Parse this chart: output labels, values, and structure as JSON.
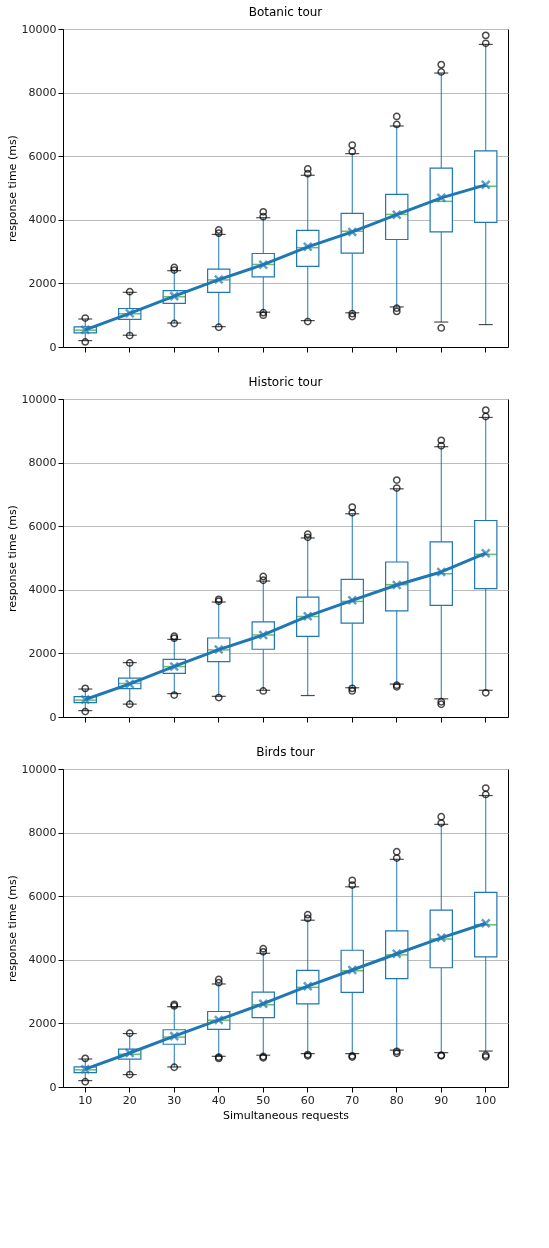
{
  "chart_data": [
    {
      "type": "box",
      "title": "Botanic tour",
      "ylabel": "response time (ms)",
      "categories": [
        "10",
        "20",
        "30",
        "40",
        "50",
        "60",
        "70",
        "80",
        "90",
        "100"
      ],
      "ylim": [
        0,
        10000
      ],
      "yticks": [
        0,
        2000,
        4000,
        6000,
        8000,
        10000
      ],
      "grid": "y",
      "legend": false,
      "tick_labels": "y",
      "series": [
        {
          "type": "box",
          "color": "#1f77b4",
          "boxes": [
            {
              "low": 200,
              "q1": 445,
              "median": 530,
              "q3": 630,
              "high": 880,
              "outliers": [
                160,
                910
              ]
            },
            {
              "low": 370,
              "q1": 870,
              "median": 1045,
              "q3": 1210,
              "high": 1720,
              "outliers": [
                360,
                1740
              ]
            },
            {
              "low": 755,
              "q1": 1375,
              "median": 1580,
              "q3": 1770,
              "high": 2400,
              "outliers": [
                740,
                2420,
                2500
              ]
            },
            {
              "low": 640,
              "q1": 1720,
              "median": 2110,
              "q3": 2450,
              "high": 3540,
              "outliers": [
                620,
                3580,
                3680
              ]
            },
            {
              "low": 1095,
              "q1": 2205,
              "median": 2595,
              "q3": 2940,
              "high": 4065,
              "outliers": [
                1000,
                1080,
                4100,
                4250
              ]
            },
            {
              "low": 830,
              "q1": 2535,
              "median": 3125,
              "q3": 3670,
              "high": 5400,
              "outliers": [
                800,
                5450,
                5600
              ]
            },
            {
              "low": 1075,
              "q1": 2950,
              "median": 3640,
              "q3": 4200,
              "high": 6080,
              "outliers": [
                960,
                1050,
                6150,
                6350
              ]
            },
            {
              "low": 1260,
              "q1": 3380,
              "median": 4170,
              "q3": 4800,
              "high": 6950,
              "outliers": [
                1120,
                1220,
                7000,
                7250
              ]
            },
            {
              "low": 785,
              "q1": 3620,
              "median": 4580,
              "q3": 5625,
              "high": 8615,
              "outliers": [
                600,
                8650,
                8880
              ]
            },
            {
              "low": 705,
              "q1": 3920,
              "median": 5055,
              "q3": 6165,
              "high": 9515,
              "outliers": [
                9550,
                9800
              ]
            }
          ]
        },
        {
          "type": "line",
          "color": "#1f77b4",
          "marker": "cross",
          "values": [
            540,
            1060,
            1600,
            2120,
            2590,
            3150,
            3620,
            4160,
            4690,
            5100
          ]
        }
      ]
    },
    {
      "type": "box",
      "title": "Historic tour",
      "ylabel": "response time (ms)",
      "categories": [
        "10",
        "20",
        "30",
        "40",
        "50",
        "60",
        "70",
        "80",
        "90",
        "100"
      ],
      "ylim": [
        0,
        10000
      ],
      "yticks": [
        0,
        2000,
        4000,
        6000,
        8000,
        10000
      ],
      "grid": "y",
      "legend": false,
      "tick_labels": "y",
      "series": [
        {
          "type": "box",
          "color": "#1f77b4",
          "boxes": [
            {
              "low": 200,
              "q1": 455,
              "median": 530,
              "q3": 640,
              "high": 880,
              "outliers": [
                170,
                900
              ]
            },
            {
              "low": 405,
              "q1": 890,
              "median": 1055,
              "q3": 1220,
              "high": 1710,
              "outliers": [
                400,
                1700
              ]
            },
            {
              "low": 735,
              "q1": 1375,
              "median": 1585,
              "q3": 1810,
              "high": 2440,
              "outliers": [
                690,
                2480,
                2540
              ]
            },
            {
              "low": 650,
              "q1": 1740,
              "median": 2110,
              "q3": 2485,
              "high": 3615,
              "outliers": [
                610,
                3640,
                3700
              ]
            },
            {
              "low": 840,
              "q1": 2130,
              "median": 2580,
              "q3": 2990,
              "high": 4275,
              "outliers": [
                820,
                4300,
                4420
              ]
            },
            {
              "low": 675,
              "q1": 2535,
              "median": 3160,
              "q3": 3770,
              "high": 5630,
              "outliers": [
                5650,
                5750
              ]
            },
            {
              "low": 920,
              "q1": 2950,
              "median": 3635,
              "q3": 4325,
              "high": 6390,
              "outliers": [
                820,
                900,
                6420,
                6600
              ]
            },
            {
              "low": 1035,
              "q1": 3335,
              "median": 4160,
              "q3": 4875,
              "high": 7175,
              "outliers": [
                950,
                1000,
                7200,
                7450
              ]
            },
            {
              "low": 570,
              "q1": 3510,
              "median": 4505,
              "q3": 5510,
              "high": 8500,
              "outliers": [
                400,
                480,
                8530,
                8700
              ]
            },
            {
              "low": 840,
              "q1": 4040,
              "median": 5115,
              "q3": 6180,
              "high": 9420,
              "outliers": [
                760,
                9450,
                9650
              ]
            }
          ]
        },
        {
          "type": "line",
          "color": "#1f77b4",
          "marker": "cross",
          "values": [
            550,
            1040,
            1590,
            2120,
            2580,
            3170,
            3670,
            4150,
            4560,
            5150
          ]
        }
      ]
    },
    {
      "type": "box",
      "title": "Birds tour",
      "xlabel": "Simultaneous requests",
      "ylabel": "response time (ms)",
      "categories": [
        "10",
        "20",
        "30",
        "40",
        "50",
        "60",
        "70",
        "80",
        "90",
        "100"
      ],
      "ylim": [
        0,
        10000
      ],
      "yticks": [
        0,
        2000,
        4000,
        6000,
        8000,
        10000
      ],
      "grid": "y",
      "legend": false,
      "series": [
        {
          "type": "box",
          "color": "#1f77b4",
          "boxes": [
            {
              "low": 200,
              "q1": 450,
              "median": 540,
              "q3": 630,
              "high": 880,
              "outliers": [
                165,
                900
              ]
            },
            {
              "low": 390,
              "q1": 875,
              "median": 1030,
              "q3": 1190,
              "high": 1680,
              "outliers": [
                390,
                1690
              ]
            },
            {
              "low": 630,
              "q1": 1345,
              "median": 1570,
              "q3": 1800,
              "high": 2525,
              "outliers": [
                620,
                2550,
                2600
              ]
            },
            {
              "low": 965,
              "q1": 1815,
              "median": 2100,
              "q3": 2375,
              "high": 3240,
              "outliers": [
                900,
                940,
                3280,
                3380
              ]
            },
            {
              "low": 1000,
              "q1": 2180,
              "median": 2585,
              "q3": 2985,
              "high": 4205,
              "outliers": [
                920,
                960,
                4250,
                4350
              ]
            },
            {
              "low": 1050,
              "q1": 2615,
              "median": 3135,
              "q3": 3665,
              "high": 5245,
              "outliers": [
                980,
                1020,
                5300,
                5420
              ]
            },
            {
              "low": 1050,
              "q1": 2975,
              "median": 3655,
              "q3": 4300,
              "high": 6295,
              "outliers": [
                940,
                980,
                6350,
                6500
              ]
            },
            {
              "low": 1160,
              "q1": 3410,
              "median": 4155,
              "q3": 4910,
              "high": 7160,
              "outliers": [
                1060,
                1120,
                7200,
                7400
              ]
            },
            {
              "low": 1080,
              "q1": 3750,
              "median": 4655,
              "q3": 5560,
              "high": 8260,
              "outliers": [
                980,
                1000,
                8300,
                8500
              ]
            },
            {
              "low": 1130,
              "q1": 4095,
              "median": 5100,
              "q3": 6120,
              "high": 9165,
              "outliers": [
                950,
                1000,
                9200,
                9400
              ]
            }
          ]
        },
        {
          "type": "line",
          "color": "#1f77b4",
          "marker": "cross",
          "values": [
            560,
            1070,
            1600,
            2110,
            2620,
            3170,
            3680,
            4190,
            4690,
            5150
          ]
        }
      ]
    }
  ]
}
